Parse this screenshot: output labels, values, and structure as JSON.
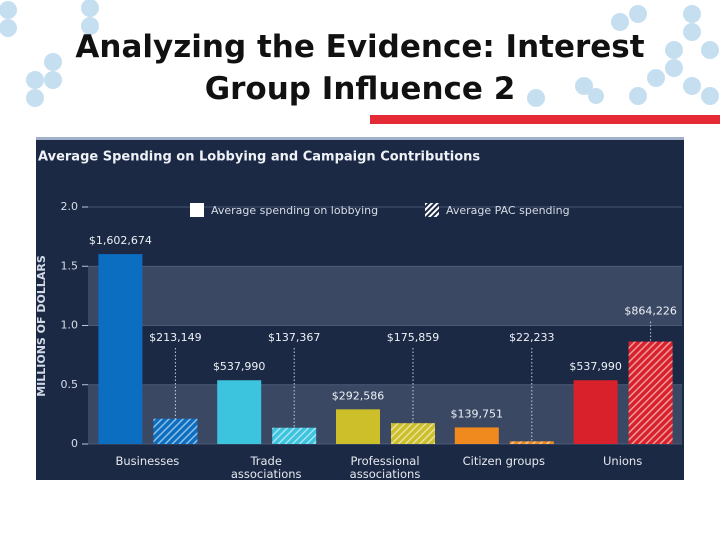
{
  "slide_title": "Analyzing the Evidence: Interest Group Influence 2",
  "chart_data": {
    "type": "bar",
    "title": "Average Spending on Lobbying and Campaign Contributions",
    "y_label": "MILLIONS OF DOLLARS",
    "categories": [
      "Businesses",
      "Trade associations",
      "Professional associations",
      "Citizen groups",
      "Unions"
    ],
    "colors": [
      "#0b6ec0",
      "#3cc3de",
      "#cdbf2a",
      "#f18a1e",
      "#d9212b"
    ],
    "series": [
      {
        "name": "Average spending on lobbying",
        "color": "#ffffff",
        "hatch": false,
        "values": [
          1.602674,
          0.53799,
          0.292586,
          0.139751,
          0.53799
        ],
        "value_labels": [
          "$1,602,674",
          "$537,990",
          "$292,586",
          "$139,751",
          "$537,990"
        ]
      },
      {
        "name": "Average PAC spending",
        "color": "#ffffff",
        "hatch": true,
        "values": [
          0.213149,
          0.137367,
          0.175859,
          0.022233,
          0.864226
        ],
        "value_labels": [
          "$213,149",
          "$137,367",
          "$175,859",
          "$22,233",
          "$864,226"
        ]
      }
    ],
    "ylim": [
      0,
      2
    ],
    "yticks": [
      0,
      0.5,
      {
        "value": 1,
        "label": "1.0"
      },
      1.5,
      {
        "value": 2,
        "label": "2.0"
      }
    ]
  }
}
